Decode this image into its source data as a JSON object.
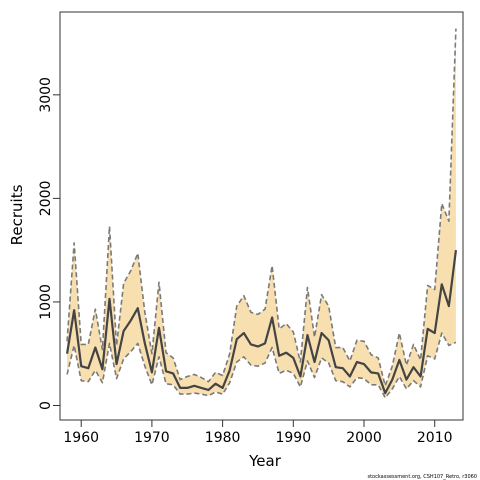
{
  "chart_data": {
    "type": "line",
    "xlabel": "Year",
    "ylabel": "Recruits",
    "xlim": [
      1957,
      2014
    ],
    "ylim": [
      -140,
      3800
    ],
    "x_ticks": [
      1960,
      1970,
      1980,
      1990,
      2000,
      2010
    ],
    "y_ticks": [
      0,
      1000,
      2000,
      3000
    ],
    "grid": false,
    "credit": "stockassessment.org, CSH107_Retro, r3060",
    "colors": {
      "band": "#f7dfb0",
      "line": "#444444",
      "bounds": "#7a7a7a"
    },
    "x": [
      1958,
      1959,
      1960,
      1961,
      1962,
      1963,
      1964,
      1965,
      1966,
      1967,
      1968,
      1969,
      1970,
      1971,
      1972,
      1973,
      1974,
      1975,
      1976,
      1977,
      1978,
      1979,
      1980,
      1981,
      1982,
      1983,
      1984,
      1985,
      1986,
      1987,
      1988,
      1989,
      1990,
      1991,
      1992,
      1993,
      1994,
      1995,
      1996,
      1997,
      1998,
      1999,
      2000,
      2001,
      2002,
      2003,
      2004,
      2005,
      2006,
      2007,
      2008,
      2009,
      2010,
      2011,
      2012,
      2013
    ],
    "series": [
      {
        "role": "estimate",
        "values": [
          500,
          920,
          380,
          360,
          560,
          350,
          1030,
          400,
          720,
          820,
          940,
          600,
          320,
          750,
          330,
          310,
          170,
          170,
          190,
          170,
          150,
          210,
          170,
          340,
          640,
          700,
          590,
          570,
          600,
          850,
          480,
          510,
          460,
          280,
          680,
          420,
          700,
          630,
          370,
          360,
          280,
          420,
          400,
          320,
          310,
          120,
          250,
          440,
          250,
          370,
          280,
          740,
          700,
          1170,
          960,
          1500
        ]
      },
      {
        "role": "upper",
        "values": [
          620,
          1570,
          590,
          590,
          930,
          540,
          1730,
          580,
          1180,
          1300,
          1470,
          900,
          500,
          1190,
          510,
          460,
          250,
          280,
          300,
          270,
          230,
          320,
          290,
          500,
          960,
          1060,
          900,
          880,
          930,
          1350,
          740,
          790,
          710,
          420,
          1140,
          660,
          1070,
          960,
          560,
          560,
          430,
          630,
          620,
          490,
          460,
          190,
          380,
          700,
          390,
          590,
          440,
          1160,
          1120,
          1950,
          1780,
          3640
        ]
      },
      {
        "role": "lower",
        "values": [
          300,
          580,
          240,
          230,
          340,
          220,
          600,
          260,
          450,
          520,
          600,
          380,
          200,
          470,
          210,
          200,
          110,
          110,
          120,
          110,
          95,
          130,
          110,
          220,
          420,
          470,
          390,
          380,
          410,
          560,
          310,
          340,
          310,
          180,
          430,
          270,
          460,
          410,
          240,
          230,
          180,
          270,
          260,
          200,
          200,
          75,
          160,
          280,
          160,
          240,
          180,
          480,
          450,
          700,
          580,
          610
        ]
      }
    ]
  }
}
